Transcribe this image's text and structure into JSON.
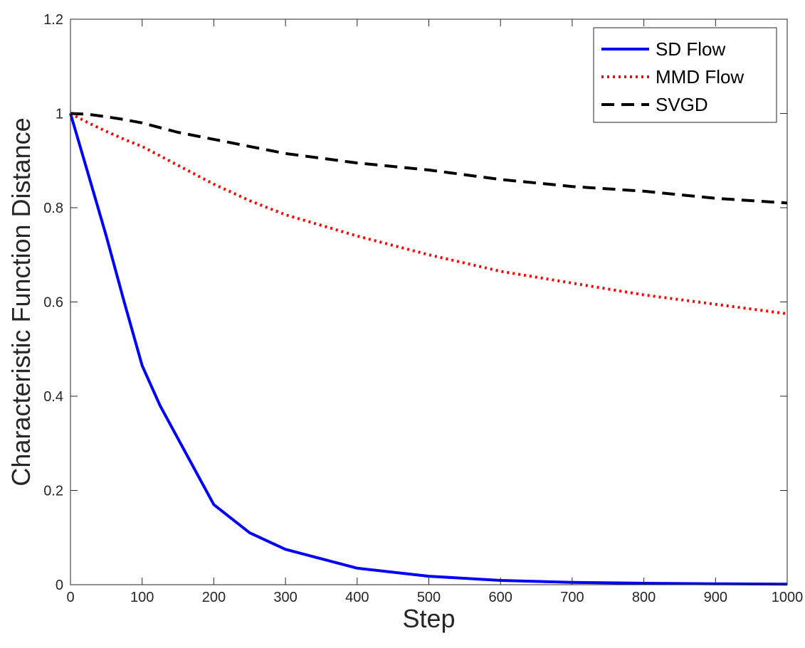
{
  "chart_data": {
    "type": "line",
    "title": "",
    "xlabel": "Step",
    "ylabel": "Characteristic Function Distance",
    "xlim": [
      0,
      1000
    ],
    "ylim": [
      0,
      1.2
    ],
    "xticks": [
      0,
      100,
      200,
      300,
      400,
      500,
      600,
      700,
      800,
      900,
      1000
    ],
    "xtick_labels": [
      "0",
      "100",
      "200",
      "300",
      "400",
      "500",
      "600",
      "700",
      "800",
      "900",
      "1000"
    ],
    "yticks": [
      0,
      0.2,
      0.4,
      0.6,
      0.8,
      1,
      1.2
    ],
    "ytick_labels": [
      "0",
      "0.2",
      "0.4",
      "0.6",
      "0.8",
      "1",
      "1.2"
    ],
    "grid": false,
    "legend_position": "top-right",
    "x": [
      0,
      25,
      50,
      75,
      100,
      125,
      150,
      200,
      250,
      300,
      400,
      500,
      600,
      700,
      800,
      900,
      1000
    ],
    "series": [
      {
        "name": "SD Flow",
        "color": "#0000ff",
        "style": "solid",
        "values": [
          1.0,
          0.87,
          0.74,
          0.6,
          0.465,
          0.38,
          0.31,
          0.17,
          0.11,
          0.075,
          0.035,
          0.018,
          0.009,
          0.005,
          0.003,
          0.002,
          0.001
        ]
      },
      {
        "name": "MMD Flow",
        "color": "#ff0000",
        "style": "dotted",
        "values": [
          1.0,
          0.98,
          0.962,
          0.945,
          0.93,
          0.91,
          0.89,
          0.85,
          0.815,
          0.785,
          0.74,
          0.7,
          0.665,
          0.64,
          0.615,
          0.595,
          0.575
        ]
      },
      {
        "name": "SVGD",
        "color": "#000000",
        "style": "dashed",
        "values": [
          1.0,
          0.998,
          0.993,
          0.987,
          0.98,
          0.97,
          0.96,
          0.945,
          0.93,
          0.915,
          0.895,
          0.88,
          0.86,
          0.845,
          0.835,
          0.82,
          0.81
        ]
      }
    ]
  }
}
